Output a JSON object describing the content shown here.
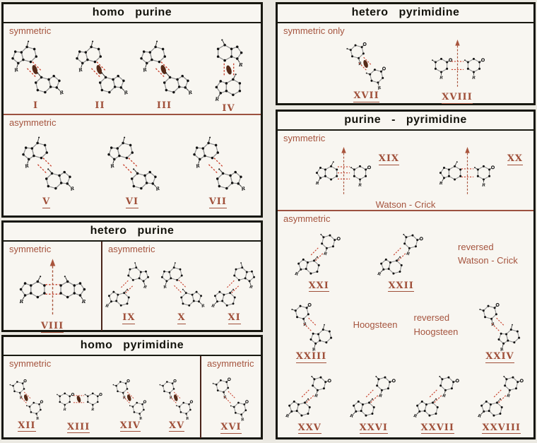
{
  "figure": {
    "glyph_labels": {
      "substituent": "R"
    },
    "colors": {
      "accent_text": "#a5543e",
      "numeral": "#a0503a",
      "hydrogen_bond": "#c8402c",
      "symmetry_symbol": "#572a18",
      "arrow": "#a8543c",
      "ink": "#141414",
      "panel_background": "#f8f6f1",
      "page_background": "#ebe9e2"
    },
    "panels": [
      {
        "title": "homo purine",
        "sections": [
          {
            "label": "symmetric",
            "structures": [
              {
                "num": "I",
                "bases": [
                  "purine",
                  "purine"
                ],
                "layout": "diag-down",
                "symbol": "ellipse",
                "bonds": 2,
                "underline": false
              },
              {
                "num": "II",
                "bases": [
                  "purine",
                  "purine"
                ],
                "layout": "diag-down",
                "symbol": "ellipse",
                "bonds": 2,
                "underline": false
              },
              {
                "num": "III",
                "bases": [
                  "purine",
                  "purine"
                ],
                "layout": "diag-down",
                "symbol": "ellipse",
                "bonds": 2,
                "underline": false
              },
              {
                "num": "IV",
                "bases": [
                  "purine",
                  "purine"
                ],
                "layout": "vert",
                "symbol": "ellipse",
                "bonds": 2,
                "underline": false
              }
            ]
          },
          {
            "label": "asymmetric",
            "structures": [
              {
                "num": "V",
                "bases": [
                  "purine",
                  "purine"
                ],
                "layout": "diag-down",
                "symbol": "none",
                "bonds": 2,
                "underline": true
              },
              {
                "num": "VI",
                "bases": [
                  "purine",
                  "purine"
                ],
                "layout": "diag-down",
                "symbol": "none",
                "bonds": 2,
                "underline": true
              },
              {
                "num": "VII",
                "bases": [
                  "purine",
                  "purine"
                ],
                "layout": "diag-down",
                "symbol": "none",
                "bonds": 2,
                "underline": true
              }
            ]
          }
        ]
      },
      {
        "title": "hetero purine",
        "sections": [
          {
            "label": "symmetric",
            "structures": [
              {
                "num": "VIII",
                "bases": [
                  "purine",
                  "purine"
                ],
                "layout": "horiz",
                "symbol": "arrow",
                "bonds": 2,
                "underline": true
              }
            ]
          },
          {
            "label": "asymmetric",
            "structures": [
              {
                "num": "IX",
                "bases": [
                  "purine",
                  "purine"
                ],
                "layout": "diag-up",
                "symbol": "none",
                "bonds": 2,
                "underline": true
              },
              {
                "num": "X",
                "bases": [
                  "purine",
                  "purine"
                ],
                "layout": "diag-down",
                "symbol": "none",
                "bonds": 2,
                "underline": true
              },
              {
                "num": "XI",
                "bases": [
                  "purine",
                  "purine"
                ],
                "layout": "diag-up",
                "symbol": "none",
                "bonds": 2,
                "underline": true
              }
            ]
          }
        ]
      },
      {
        "title": "homo pyrimidine",
        "sections": [
          {
            "label": "symmetric",
            "structures": [
              {
                "num": "XII",
                "bases": [
                  "pyrimidine",
                  "pyrimidine"
                ],
                "layout": "diag-down",
                "symbol": "ellipse",
                "bonds": 2,
                "underline": true
              },
              {
                "num": "XIII",
                "bases": [
                  "pyrimidine",
                  "pyrimidine"
                ],
                "layout": "horiz",
                "symbol": "ellipse",
                "bonds": 2,
                "underline": true
              },
              {
                "num": "XIV",
                "bases": [
                  "pyrimidine",
                  "pyrimidine"
                ],
                "layout": "diag-down",
                "symbol": "ellipse",
                "bonds": 2,
                "underline": true
              },
              {
                "num": "XV",
                "bases": [
                  "pyrimidine",
                  "pyrimidine"
                ],
                "layout": "diag-down",
                "symbol": "ellipse",
                "bonds": 2,
                "underline": true
              }
            ]
          },
          {
            "label": "asymmetric",
            "structures": [
              {
                "num": "XVI",
                "bases": [
                  "pyrimidine",
                  "pyrimidine"
                ],
                "layout": "diag-down",
                "symbol": "none",
                "bonds": 2,
                "underline": true
              }
            ]
          }
        ]
      },
      {
        "title": "hetero pyrimidine",
        "sections": [
          {
            "label": "symmetric only",
            "structures": [
              {
                "num": "XVII",
                "bases": [
                  "pyrimidine",
                  "pyrimidine"
                ],
                "layout": "diag-down",
                "symbol": "ellipse",
                "bonds": 2,
                "underline": true
              },
              {
                "num": "XVIII",
                "bases": [
                  "pyrimidine",
                  "pyrimidine"
                ],
                "layout": "horiz",
                "symbol": "arrow",
                "bonds": 2,
                "underline": true
              }
            ]
          }
        ]
      },
      {
        "title": "purine - pyrimidine",
        "sections": [
          {
            "label": "symmetric",
            "caption": "Watson - Crick",
            "structures": [
              {
                "num": "XIX",
                "bases": [
                  "purine",
                  "pyrimidine"
                ],
                "layout": "horiz",
                "symbol": "arrow",
                "bonds": 3,
                "underline": true,
                "num_pos": "top-right"
              },
              {
                "num": "XX",
                "bases": [
                  "purine",
                  "pyrimidine"
                ],
                "layout": "horiz",
                "symbol": "arrow",
                "bonds": 2,
                "underline": true,
                "num_pos": "top-right"
              }
            ]
          },
          {
            "label": "asymmetric",
            "rows": [
              {
                "items": [
                  {
                    "type": "pair",
                    "num": "XXI",
                    "bases": [
                      "purine",
                      "pyrimidine"
                    ],
                    "layout": "diag-up",
                    "symbol": "none",
                    "bonds": 2,
                    "underline": true
                  },
                  {
                    "type": "pair",
                    "num": "XXII",
                    "bases": [
                      "purine",
                      "pyrimidine"
                    ],
                    "layout": "diag-up",
                    "symbol": "none",
                    "bonds": 2,
                    "underline": true
                  },
                  {
                    "type": "note",
                    "lines": [
                      "reversed",
                      "Watson - Crick"
                    ]
                  }
                ]
              },
              {
                "items": [
                  {
                    "type": "pair",
                    "num": "XXIII",
                    "bases": [
                      "pyrimidine",
                      "purine"
                    ],
                    "layout": "diag-down",
                    "symbol": "none",
                    "bonds": 2,
                    "underline": true
                  },
                  {
                    "type": "note",
                    "lines": [
                      "Hoogsteen"
                    ]
                  },
                  {
                    "type": "note",
                    "lines": [
                      "reversed",
                      "Hoogsteen"
                    ]
                  },
                  {
                    "type": "pair",
                    "num": "XXIV",
                    "bases": [
                      "pyrimidine",
                      "purine"
                    ],
                    "layout": "diag-down",
                    "symbol": "none",
                    "bonds": 2,
                    "underline": true
                  }
                ]
              },
              {
                "items": [
                  {
                    "type": "pair",
                    "num": "XXV",
                    "bases": [
                      "purine",
                      "pyrimidine"
                    ],
                    "layout": "diag-up",
                    "symbol": "none",
                    "bonds": 2,
                    "underline": true
                  },
                  {
                    "type": "pair",
                    "num": "XXVI",
                    "bases": [
                      "purine",
                      "pyrimidine"
                    ],
                    "layout": "diag-up",
                    "symbol": "none",
                    "bonds": 2,
                    "underline": true
                  },
                  {
                    "type": "pair",
                    "num": "XXVII",
                    "bases": [
                      "purine",
                      "pyrimidine"
                    ],
                    "layout": "diag-up",
                    "symbol": "none",
                    "bonds": 2,
                    "underline": true
                  },
                  {
                    "type": "pair",
                    "num": "XXVIII",
                    "bases": [
                      "purine",
                      "pyrimidine"
                    ],
                    "layout": "diag-up",
                    "symbol": "none",
                    "bonds": 2,
                    "underline": true
                  }
                ]
              }
            ]
          }
        ]
      }
    ]
  }
}
